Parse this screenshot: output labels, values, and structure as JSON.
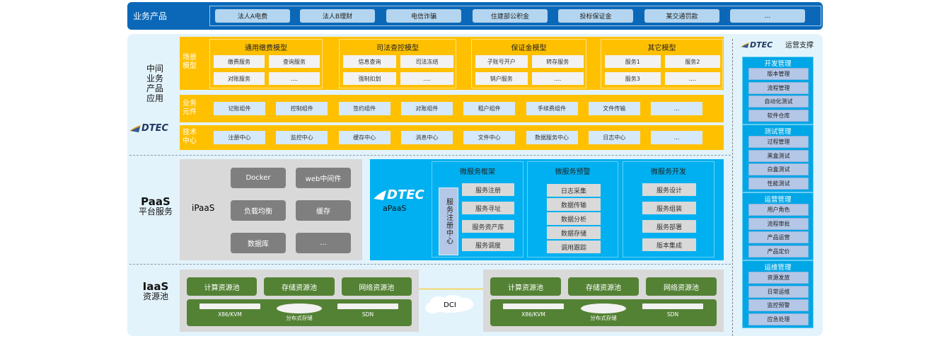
{
  "top": {
    "label": "业务产品",
    "items": [
      "法人A电费",
      "法人B理财",
      "电信诈骗",
      "住建部公积金",
      "投标保证金",
      "某交通罚款",
      "..."
    ]
  },
  "middle": {
    "label": [
      "中间",
      "业务",
      "产品",
      "应用"
    ],
    "logo": "DTEC",
    "scene": {
      "label": "场景模型",
      "groups": [
        {
          "title": "通用缴费模型",
          "items": [
            "缴费服务",
            "查询服务",
            "对账服务",
            "...."
          ]
        },
        {
          "title": "司法查控模型",
          "items": [
            "信息查询",
            "司法冻结",
            "强制扣划",
            "...."
          ]
        },
        {
          "title": "保证金模型",
          "items": [
            "子账号开户",
            "转存服务",
            "销户服务",
            "...."
          ]
        },
        {
          "title": "其它模型",
          "items": [
            "服务1",
            "服务2",
            "服务3",
            "...."
          ]
        }
      ]
    },
    "components": {
      "label": "业务元件",
      "items": [
        "记账组件",
        "控制组件",
        "签约组件",
        "对账组件",
        "租户组件",
        "手续费组件",
        "文件传输",
        "..."
      ]
    },
    "tech": {
      "label": "技术中心",
      "items": [
        "注册中心",
        "监控中心",
        "缓存中心",
        "消息中心",
        "文件中心",
        "数据服务中心",
        "日志中心",
        "..."
      ]
    }
  },
  "paas": {
    "title": "PaaS",
    "subtitle": "平台服务",
    "ipaas": {
      "label": "iPaaS",
      "items": [
        "Docker",
        "web中间件",
        "负载均衡",
        "缓存",
        "数据库",
        "..."
      ]
    },
    "apaas": {
      "label": "aPaaS",
      "logo": "DTEC",
      "registry": "服务注册中心",
      "groups": [
        {
          "title": "微服务框架",
          "items": [
            "服务注册",
            "服务寻址",
            "服务资产库",
            "服务调度"
          ]
        },
        {
          "title": "微服务预警",
          "items": [
            "日志采集",
            "数据传输",
            "数据分析",
            "数据存储",
            "调用跟踪"
          ]
        },
        {
          "title": "微服务开发",
          "items": [
            "服务设计",
            "服务组装",
            "服务部署",
            "版本集成"
          ]
        }
      ]
    }
  },
  "iaas": {
    "title": "IaaS",
    "subtitle": "资源池",
    "pools": [
      "计算资源池",
      "存储资源池",
      "网络资源池"
    ],
    "hardware": [
      "X86/KVM",
      "分布式存储",
      "SDN"
    ],
    "link": "DCI"
  },
  "ops": {
    "logo": "DTEC",
    "title": "运营支撑",
    "groups": [
      {
        "title": "开发管理",
        "items": [
          "版本管理",
          "流程管理",
          "自动化测试",
          "软件仓库"
        ]
      },
      {
        "title": "测试管理",
        "items": [
          "过程管理",
          "黑盒测试",
          "白盒测试",
          "性能测试"
        ]
      },
      {
        "title": "运营管理",
        "items": [
          "用户角色",
          "流程审批",
          "产品运营",
          "产品定价"
        ]
      },
      {
        "title": "运维管理",
        "items": [
          "资源发放",
          "日常运维",
          "监控预警",
          "应急处理"
        ]
      }
    ]
  },
  "colors": {
    "top": "#0b68b8",
    "yellow": "#ffc000",
    "apaas": "#00b0f0",
    "green": "#548235",
    "panel": "#e3f3fc"
  }
}
